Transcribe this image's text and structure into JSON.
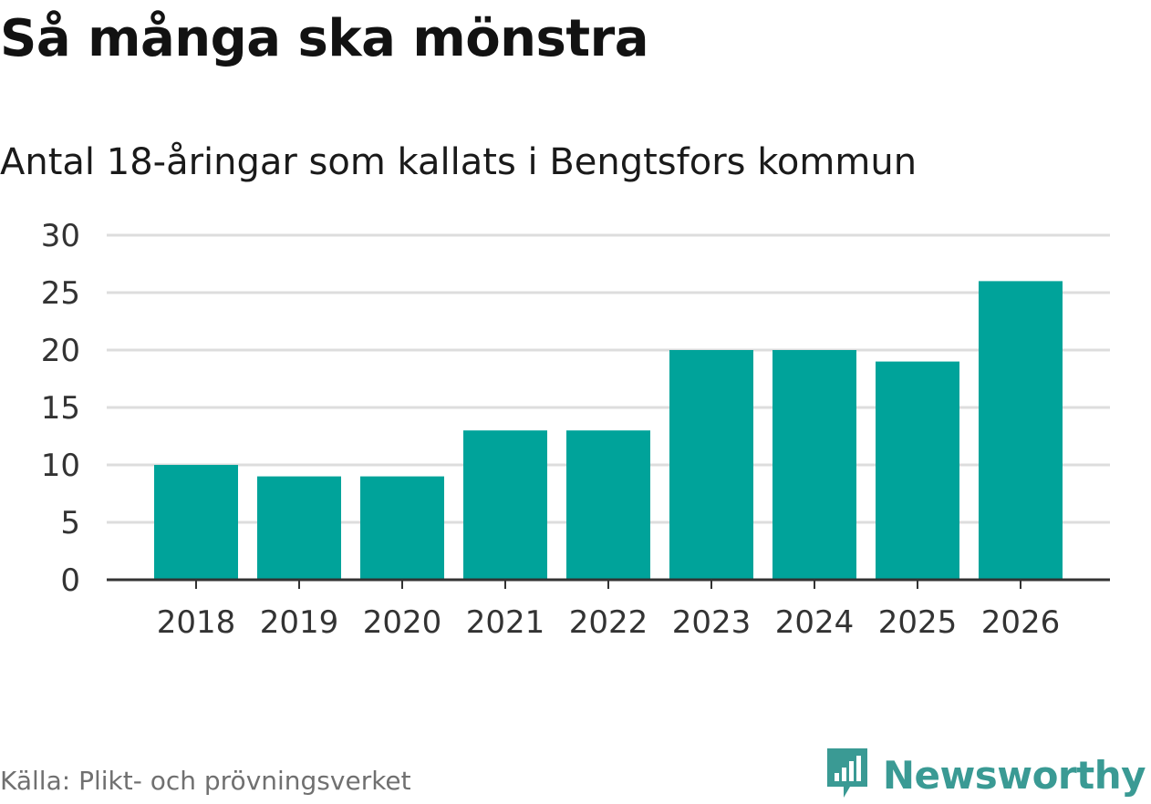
{
  "header": {
    "title": "Så många ska mönstra",
    "subtitle": "Antal 18-åringar som kallats i Bengtsfors kommun"
  },
  "footer": {
    "source": "Källa: Plikt- och prövningsverket",
    "brand": "Newsworthy",
    "brand_icon": "newsworthy-logo-icon"
  },
  "colors": {
    "bar": "#00a39a",
    "grid": "#dddddd",
    "axis": "#333333",
    "brand": "#3a9a94"
  },
  "chart_data": {
    "type": "bar",
    "title": "Så många ska mönstra",
    "subtitle": "Antal 18-åringar som kallats i Bengtsfors kommun",
    "xlabel": "",
    "ylabel": "",
    "categories": [
      "2018",
      "2019",
      "2020",
      "2021",
      "2022",
      "2023",
      "2024",
      "2025",
      "2026"
    ],
    "values": [
      10,
      9,
      9,
      13,
      13,
      20,
      20,
      19,
      26
    ],
    "ylim": [
      0,
      30
    ],
    "yticks": [
      0,
      5,
      10,
      15,
      20,
      25,
      30
    ],
    "grid": true,
    "legend": "none"
  }
}
